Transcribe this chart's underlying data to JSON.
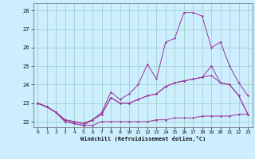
{
  "xlabel": "Windchill (Refroidissement éolien,°C)",
  "bg_color": "#cceeff",
  "grid_color": "#99ccbb",
  "line_color": "#993399",
  "marker_color": "#993399",
  "x_hours": [
    0,
    1,
    2,
    3,
    4,
    5,
    6,
    7,
    8,
    9,
    10,
    11,
    12,
    13,
    14,
    15,
    16,
    17,
    18,
    19,
    20,
    21,
    22,
    23
  ],
  "line1": [
    23.0,
    22.8,
    22.5,
    22.0,
    21.9,
    21.8,
    21.8,
    22.0,
    22.0,
    22.0,
    22.0,
    22.0,
    22.0,
    22.1,
    22.1,
    22.2,
    22.2,
    22.2,
    22.3,
    22.3,
    22.3,
    22.3,
    22.4,
    22.4
  ],
  "line2": [
    23.0,
    22.8,
    22.5,
    22.0,
    21.9,
    21.8,
    22.1,
    22.5,
    23.6,
    23.2,
    23.5,
    24.0,
    25.1,
    24.3,
    26.3,
    26.5,
    27.9,
    27.9,
    27.7,
    26.0,
    26.3,
    25.0,
    24.1,
    23.4
  ],
  "line3": [
    23.0,
    22.8,
    22.5,
    22.1,
    22.0,
    21.9,
    22.1,
    22.4,
    23.3,
    23.0,
    23.0,
    23.2,
    23.4,
    23.5,
    23.9,
    24.1,
    24.2,
    24.3,
    24.4,
    24.5,
    24.1,
    24.0,
    23.4,
    22.4
  ],
  "line4": [
    23.0,
    22.8,
    22.5,
    22.1,
    22.0,
    21.9,
    22.1,
    22.4,
    23.3,
    23.0,
    23.0,
    23.2,
    23.4,
    23.5,
    23.9,
    24.1,
    24.2,
    24.3,
    24.4,
    25.0,
    24.1,
    24.0,
    23.4,
    22.4
  ],
  "ylim": [
    21.7,
    28.4
  ],
  "yticks": [
    22,
    23,
    24,
    25,
    26,
    27,
    28
  ],
  "xticks": [
    0,
    1,
    2,
    3,
    4,
    5,
    6,
    7,
    8,
    9,
    10,
    11,
    12,
    13,
    14,
    15,
    16,
    17,
    18,
    19,
    20,
    21,
    22,
    23
  ]
}
